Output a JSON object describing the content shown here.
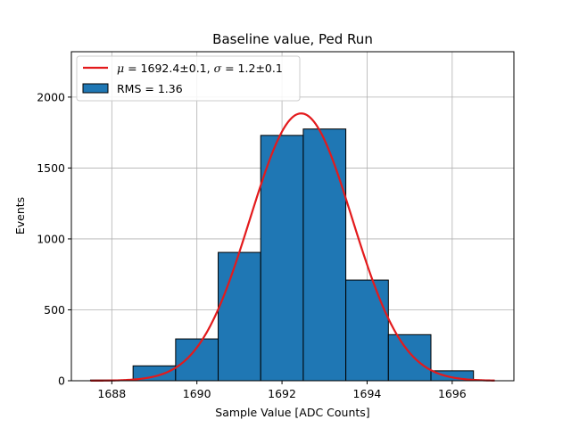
{
  "chart_data": {
    "type": "bar",
    "title": "Baseline value, Ped Run",
    "xlabel": "Sample Value [ADC Counts]",
    "ylabel": "Events",
    "xlim": [
      1687.05,
      1697.45
    ],
    "ylim": [
      0,
      2320
    ],
    "x_ticks": [
      1688,
      1690,
      1692,
      1694,
      1696
    ],
    "y_ticks": [
      0,
      500,
      1000,
      1500,
      2000
    ],
    "grid": true,
    "legend_placement": "top-left",
    "bin_edges": [
      1687.5,
      1688.5,
      1689.5,
      1690.5,
      1691.5,
      1692.5,
      1693.5,
      1694.5,
      1695.5,
      1696.5
    ],
    "counts": [
      5,
      105,
      295,
      905,
      1730,
      1775,
      710,
      325,
      70
    ],
    "fit": {
      "mu": 1692.45,
      "sigma": 1.2,
      "amplitude": 1885,
      "x_range": [
        1687.5,
        1697.0
      ]
    },
    "legend": {
      "fit_mu_symbol": "μ",
      "fit_mu_value": " = 1692.4±0.1, ",
      "fit_sigma_symbol": "σ",
      "fit_sigma_value": " = 1.2±0.1",
      "hist_label": "RMS = 1.36"
    },
    "colors": {
      "bar_fill": "#1f77b4",
      "bar_edge": "#000000",
      "fit_line": "#e31a1c",
      "grid": "#b0b0b0"
    }
  }
}
